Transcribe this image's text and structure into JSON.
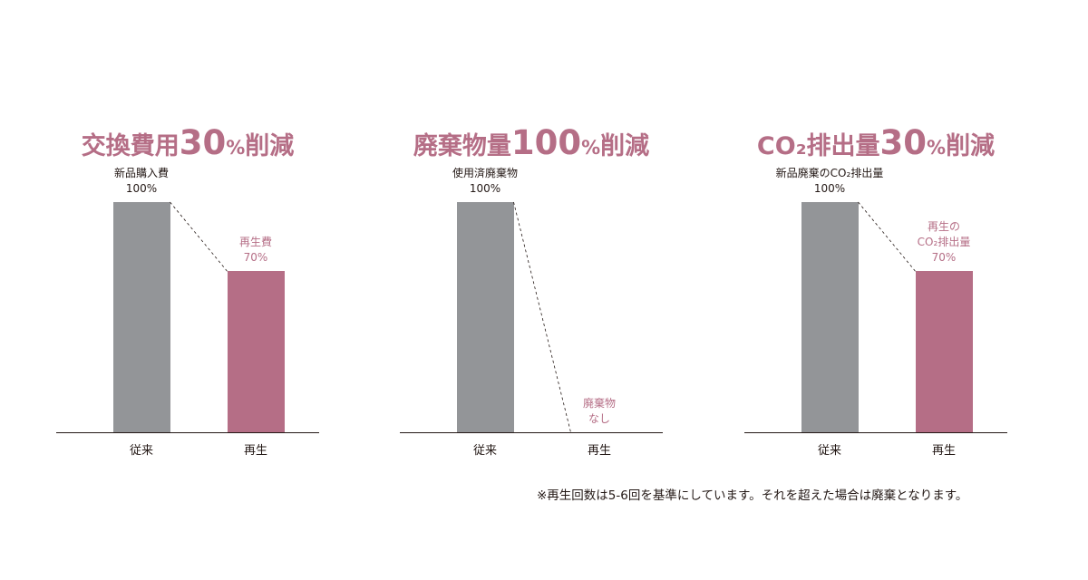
{
  "chart_data": [
    {
      "type": "bar",
      "title_parts": [
        "交換費用",
        "30",
        "%",
        "削減"
      ],
      "categories": [
        "従来",
        "再生"
      ],
      "values": [
        100,
        70
      ],
      "ylim": [
        0,
        100
      ],
      "bar_labels": [
        [
          "新品購入費",
          "100%"
        ],
        [
          "再生費",
          "70%"
        ]
      ],
      "bar_colors": [
        "#939598",
        "#b56e86"
      ],
      "label_colors": [
        "#231815",
        "#b56e86"
      ]
    },
    {
      "type": "bar",
      "title_parts": [
        "廃棄物量",
        "100",
        "%",
        "削減"
      ],
      "categories": [
        "従来",
        "再生"
      ],
      "values": [
        100,
        0
      ],
      "ylim": [
        0,
        100
      ],
      "bar_labels": [
        [
          "使用済廃棄物",
          "100%"
        ],
        [
          "廃棄物",
          "なし"
        ]
      ],
      "bar_colors": [
        "#939598",
        "#b56e86"
      ],
      "label_colors": [
        "#231815",
        "#b56e86"
      ]
    },
    {
      "type": "bar",
      "title_parts": [
        "CO₂排出量",
        "30",
        "%",
        "削減"
      ],
      "categories": [
        "従来",
        "再生"
      ],
      "values": [
        100,
        70
      ],
      "ylim": [
        0,
        100
      ],
      "bar_labels": [
        [
          "新品廃棄のCO₂排出量",
          "100%"
        ],
        [
          "再生の",
          "CO₂排出量",
          "70%"
        ]
      ],
      "bar_colors": [
        "#939598",
        "#b56e86"
      ],
      "label_colors": [
        "#231815",
        "#b56e86"
      ]
    }
  ],
  "footnote": "※再生回数は5-6回を基準にしています。それを超えた場合は廃棄となります。",
  "colors": {
    "accent": "#b56e86",
    "bar_gray": "#939598",
    "text": "#231815"
  }
}
